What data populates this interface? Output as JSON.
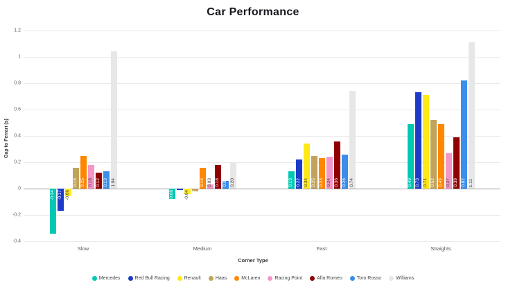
{
  "chart_data": {
    "type": "bar",
    "title": "Car Performance",
    "xlabel": "Corner Type",
    "ylabel": "Gap to Ferrari (s)",
    "categories": [
      "Slow",
      "Medium",
      "Fast",
      "Straights"
    ],
    "ylim": [
      -0.4,
      1.2
    ],
    "yticks": [
      1.2,
      1,
      0.8,
      0.6,
      0.4,
      0.2,
      0,
      -0.2,
      -0.4
    ],
    "grid": true,
    "legend_position": "bottom",
    "series": [
      {
        "name": "Mercedes",
        "color": "#00c8b3",
        "values": [
          -0.34,
          -0.08,
          0.13,
          0.49
        ]
      },
      {
        "name": "Red Bull Racing",
        "color": "#1c3bc8",
        "values": [
          -0.17,
          -0.01,
          0.22,
          0.73
        ]
      },
      {
        "name": "Renault",
        "color": "#ffe818",
        "values": [
          -0.06,
          -0.04,
          0.34,
          0.71
        ]
      },
      {
        "name": "Haas",
        "color": "#c2a35c",
        "values": [
          0.16,
          -0.02,
          0.25,
          0.52
        ]
      },
      {
        "name": "McLaren",
        "color": "#ff8700",
        "values": [
          0.25,
          0.16,
          0.23,
          0.49
        ]
      },
      {
        "name": "Racing Point",
        "color": "#f596c8",
        "values": [
          0.18,
          0.03,
          0.24,
          0.27
        ]
      },
      {
        "name": "Alfa Romeo",
        "color": "#900000",
        "values": [
          0.12,
          0.18,
          0.36,
          0.39
        ]
      },
      {
        "name": "Toro Rosso",
        "color": "#3b8eea",
        "values": [
          0.13,
          0.06,
          0.26,
          0.82
        ]
      },
      {
        "name": "Williams",
        "color": "#e7e7e7",
        "values": [
          1.04,
          0.2,
          0.74,
          1.11
        ]
      }
    ]
  }
}
